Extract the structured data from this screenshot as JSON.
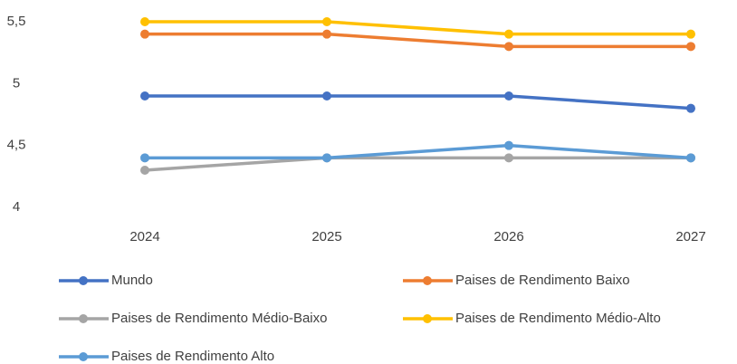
{
  "chart_data": {
    "type": "line",
    "categories": [
      "2024",
      "2025",
      "2026",
      "2027"
    ],
    "series": [
      {
        "name": "Mundo",
        "color": "#4472c4",
        "values": [
          4.9,
          4.9,
          4.9,
          4.8
        ]
      },
      {
        "name": "Paises de Rendimento Baixo",
        "color": "#ed7d31",
        "values": [
          5.4,
          5.4,
          5.3,
          5.3
        ]
      },
      {
        "name": "Paises de Rendimento Médio-Baixo",
        "color": "#a5a5a5",
        "values": [
          4.3,
          4.4,
          4.4,
          4.4
        ]
      },
      {
        "name": "Paises de Rendimento Médio-Alto",
        "color": "#ffc000",
        "values": [
          5.5,
          5.5,
          5.4,
          5.4
        ]
      },
      {
        "name": "Paises de Rendimento Alto",
        "color": "#5b9bd5",
        "values": [
          4.4,
          4.4,
          4.5,
          4.4
        ]
      }
    ],
    "ylim": [
      4,
      5.5
    ],
    "yticks": [
      4,
      {
        "value": 4.5,
        "label": "4,5"
      },
      5,
      {
        "value": 5.5,
        "label": "5,5"
      }
    ],
    "grid": false,
    "legend": "bottom"
  }
}
